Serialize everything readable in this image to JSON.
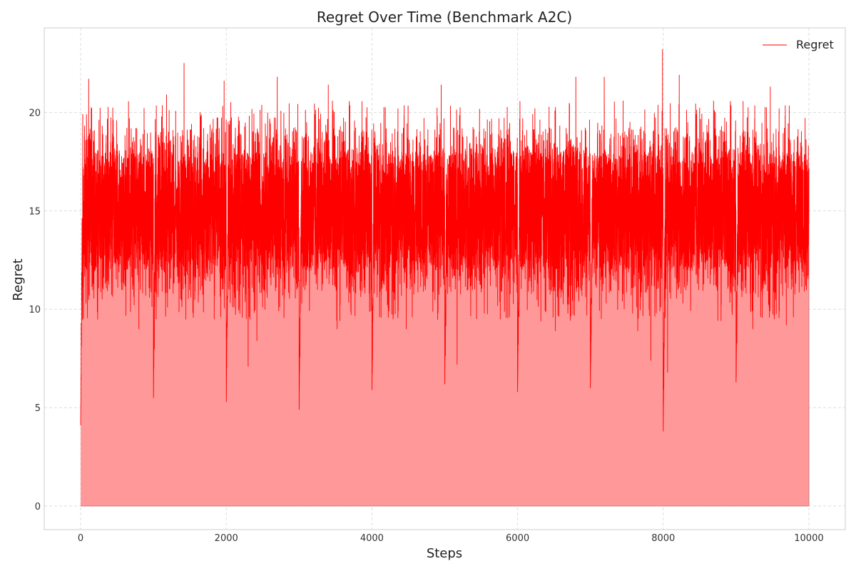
{
  "chart_data": {
    "type": "area",
    "title": "Regret Over Time (Benchmark A2C)",
    "xlabel": "Steps",
    "ylabel": "Regret",
    "xlim": [
      -500,
      10500
    ],
    "ylim": [
      -1.2,
      24.3
    ],
    "xticks": [
      0,
      2000,
      4000,
      6000,
      8000,
      10000
    ],
    "yticks": [
      0,
      5,
      10,
      15,
      20
    ],
    "grid": true,
    "legend_position": "top-right",
    "series": [
      {
        "name": "Regret",
        "color": "#ff0000",
        "fill_color": "#ff9999",
        "x_range": [
          0,
          10000
        ],
        "n_points": 10000,
        "band": {
          "mean": 15.0,
          "low": 12.0,
          "high": 18.0
        },
        "episode_period": 1000,
        "episode_start_values": [
          4.1,
          5.5,
          5.3,
          4.9,
          5.9,
          6.2,
          5.8,
          6.0,
          3.8,
          6.3
        ],
        "peaks": [
          {
            "x": 110,
            "y": 21.7
          },
          {
            "x": 1180,
            "y": 20.9
          },
          {
            "x": 1420,
            "y": 22.5
          },
          {
            "x": 1970,
            "y": 21.6
          },
          {
            "x": 2700,
            "y": 21.8
          },
          {
            "x": 3400,
            "y": 21.4
          },
          {
            "x": 4950,
            "y": 21.4
          },
          {
            "x": 6800,
            "y": 21.8
          },
          {
            "x": 7190,
            "y": 21.8
          },
          {
            "x": 7990,
            "y": 23.2
          },
          {
            "x": 8220,
            "y": 21.9
          },
          {
            "x": 9470,
            "y": 21.3
          }
        ],
        "dips": [
          {
            "x": 800,
            "y": 9.0
          },
          {
            "x": 2300,
            "y": 7.1
          },
          {
            "x": 2420,
            "y": 8.4
          },
          {
            "x": 3520,
            "y": 9.0
          },
          {
            "x": 4470,
            "y": 9.0
          },
          {
            "x": 5170,
            "y": 7.2
          },
          {
            "x": 6520,
            "y": 8.9
          },
          {
            "x": 7650,
            "y": 8.9
          },
          {
            "x": 7830,
            "y": 7.4
          },
          {
            "x": 8060,
            "y": 6.8
          },
          {
            "x": 9230,
            "y": 9.0
          },
          {
            "x": 9690,
            "y": 9.2
          }
        ]
      }
    ]
  }
}
